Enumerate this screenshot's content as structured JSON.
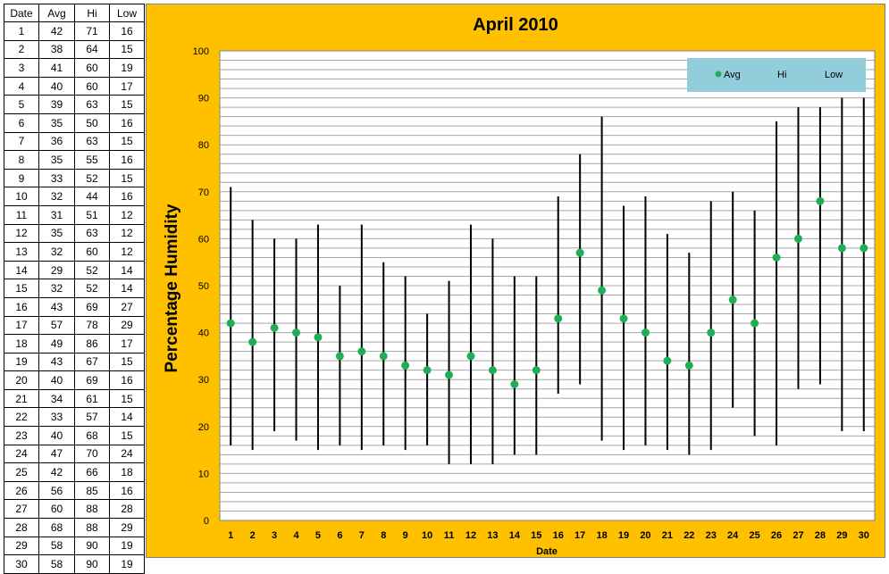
{
  "table": {
    "headers": [
      "Date",
      "Avg",
      "Hi",
      "Low"
    ],
    "rows": [
      [
        "1",
        "42",
        "71",
        "16"
      ],
      [
        "2",
        "38",
        "64",
        "15"
      ],
      [
        "3",
        "41",
        "60",
        "19"
      ],
      [
        "4",
        "40",
        "60",
        "17"
      ],
      [
        "5",
        "39",
        "63",
        "15"
      ],
      [
        "6",
        "35",
        "50",
        "16"
      ],
      [
        "7",
        "36",
        "63",
        "15"
      ],
      [
        "8",
        "35",
        "55",
        "16"
      ],
      [
        "9",
        "33",
        "52",
        "15"
      ],
      [
        "10",
        "32",
        "44",
        "16"
      ],
      [
        "11",
        "31",
        "51",
        "12"
      ],
      [
        "12",
        "35",
        "63",
        "12"
      ],
      [
        "13",
        "32",
        "60",
        "12"
      ],
      [
        "14",
        "29",
        "52",
        "14"
      ],
      [
        "15",
        "32",
        "52",
        "14"
      ],
      [
        "16",
        "43",
        "69",
        "27"
      ],
      [
        "17",
        "57",
        "78",
        "29"
      ],
      [
        "18",
        "49",
        "86",
        "17"
      ],
      [
        "19",
        "43",
        "67",
        "15"
      ],
      [
        "20",
        "40",
        "69",
        "16"
      ],
      [
        "21",
        "34",
        "61",
        "15"
      ],
      [
        "22",
        "33",
        "57",
        "14"
      ],
      [
        "23",
        "40",
        "68",
        "15"
      ],
      [
        "24",
        "47",
        "70",
        "24"
      ],
      [
        "25",
        "42",
        "66",
        "18"
      ],
      [
        "26",
        "56",
        "85",
        "16"
      ],
      [
        "27",
        "60",
        "88",
        "28"
      ],
      [
        "28",
        "68",
        "88",
        "29"
      ],
      [
        "29",
        "58",
        "90",
        "19"
      ],
      [
        "30",
        "58",
        "90",
        "19"
      ]
    ]
  },
  "chart_data": {
    "type": "scatter",
    "title": "April 2010",
    "xlabel": "Date",
    "ylabel": "Percentage Humidity",
    "ylim": [
      0,
      100
    ],
    "yticks": [
      0,
      10,
      20,
      30,
      40,
      50,
      60,
      70,
      80,
      90,
      100
    ],
    "x": [
      1,
      2,
      3,
      4,
      5,
      6,
      7,
      8,
      9,
      10,
      11,
      12,
      13,
      14,
      15,
      16,
      17,
      18,
      19,
      20,
      21,
      22,
      23,
      24,
      25,
      26,
      27,
      28,
      29,
      30
    ],
    "series": [
      {
        "name": "Avg",
        "values": [
          42,
          38,
          41,
          40,
          39,
          35,
          36,
          35,
          33,
          32,
          31,
          35,
          32,
          29,
          32,
          43,
          57,
          49,
          43,
          40,
          34,
          33,
          40,
          47,
          42,
          56,
          60,
          68,
          58,
          58
        ]
      },
      {
        "name": "Hi",
        "values": [
          71,
          64,
          60,
          60,
          63,
          50,
          63,
          55,
          52,
          44,
          51,
          63,
          60,
          52,
          52,
          69,
          78,
          86,
          67,
          69,
          61,
          57,
          68,
          70,
          66,
          85,
          88,
          88,
          90,
          90
        ]
      },
      {
        "name": "Low",
        "values": [
          16,
          15,
          19,
          17,
          15,
          16,
          15,
          16,
          15,
          16,
          12,
          12,
          12,
          14,
          14,
          27,
          29,
          17,
          15,
          16,
          15,
          14,
          15,
          24,
          18,
          16,
          28,
          29,
          19,
          19
        ]
      }
    ],
    "grid": true,
    "legend_position": "top-right",
    "colors": {
      "avg_marker": "#1fae55",
      "range_line": "#000000",
      "background": "#ffc000",
      "plot_background": "#ffffff",
      "legend_background": "#92cddc"
    }
  }
}
